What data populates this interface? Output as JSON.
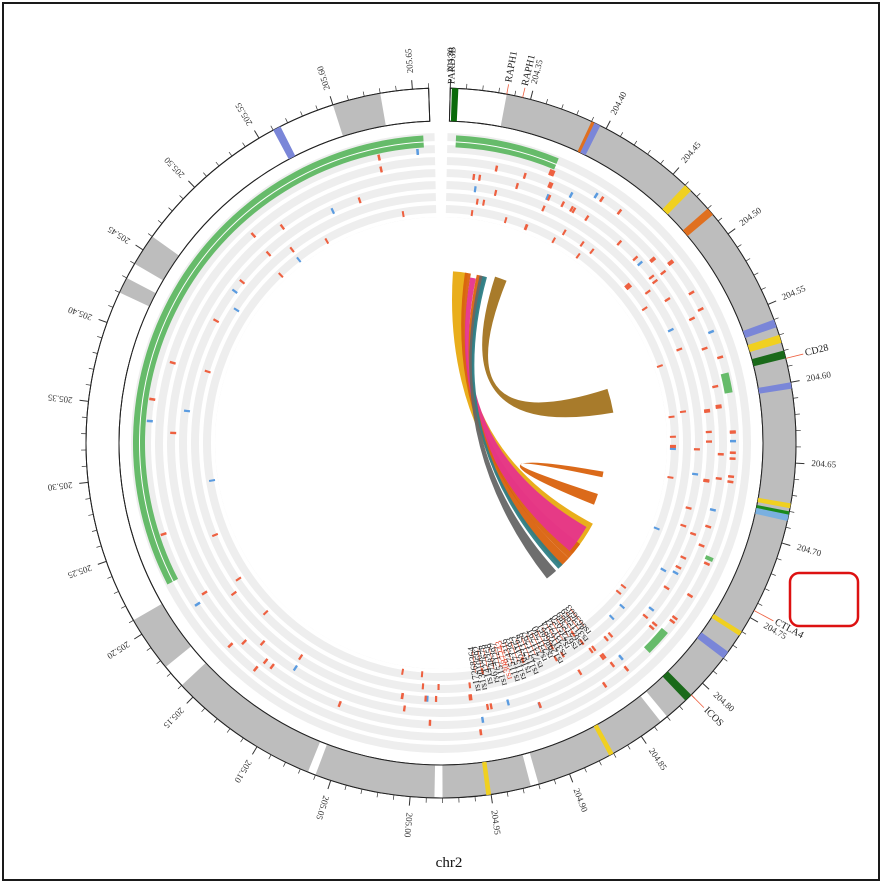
{
  "chromosome_label": "chr2",
  "axis_ticks": [
    "204.30",
    "204.35",
    "204.40",
    "204.45",
    "204.50",
    "204.55",
    "204.60",
    "204.65",
    "204.70",
    "204.75",
    "204.80",
    "204.85",
    "204.90",
    "204.95",
    "205.00",
    "205.05",
    "205.10",
    "205.15",
    "205.20",
    "205.25",
    "205.30",
    "205.35",
    "205.40",
    "205.45",
    "205.50",
    "205.55",
    "205.60",
    "205.65"
  ],
  "genes": [
    {
      "label": "PARD3B"
    },
    {
      "label": "RAPH1"
    },
    {
      "label": "RAPH1"
    },
    {
      "label": "CD28"
    },
    {
      "label": "CTLA4"
    },
    {
      "label": "ICOS"
    }
  ],
  "snps": [
    "rs863603",
    "rs3115969",
    "rs6715389",
    "rs6745050",
    "rs231734",
    "rs3116514",
    "rs12986861",
    "rs231790",
    "rs231791",
    "rs7211792",
    "rs11571158",
    "rs1024162",
    "rs11571293",
    "rs11574316",
    "rs3087243",
    "rs11571297",
    "rs6748358",
    "rs1427678",
    "rs13010692",
    "rs17268364"
  ],
  "highlighted_snp": "rs3087243",
  "colors": {
    "ideogram_gray": "#bdbdbd",
    "green_track": "#66bb6a",
    "red_mark": "#ee6040",
    "blue_mark": "#5a9be0",
    "highlight_box": "#dd1111",
    "link_brown": "#a37420",
    "link_orange": "#d9620e",
    "link_gold": "#e8aa10",
    "link_pink": "#e6348c",
    "link_gray": "#666666",
    "link_teal": "#2f7f86"
  }
}
